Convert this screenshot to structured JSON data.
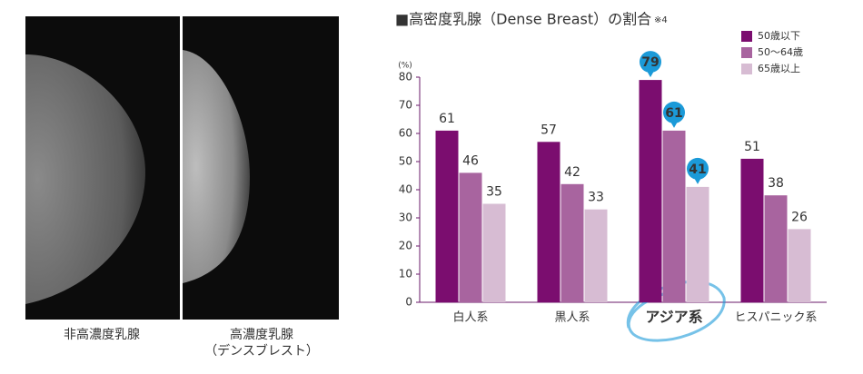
{
  "images": [
    {
      "caption": [
        "非高濃度乳腺"
      ]
    },
    {
      "caption": [
        "高濃度乳腺",
        "（デンスブレスト）"
      ]
    }
  ],
  "chart_data": {
    "type": "bar",
    "title": "■高密度乳腺（Dense Breast）の割合",
    "title_note": "※4",
    "y_label": "(%)",
    "categories": [
      "白人系",
      "黒人系",
      "アジア系",
      "ヒスパニック系"
    ],
    "series": [
      {
        "name": "50歳以下",
        "color": "#7b0d6f",
        "values": [
          61,
          57,
          79,
          51
        ]
      },
      {
        "name": "50～64歳",
        "color": "#a8649f",
        "values": [
          46,
          42,
          61,
          38
        ]
      },
      {
        "name": "65歳以上",
        "color": "#d7bcd3",
        "values": [
          35,
          33,
          41,
          26
        ]
      }
    ],
    "ylim": [
      0,
      80
    ],
    "yticks": [
      0,
      10,
      20,
      30,
      40,
      50,
      60,
      70,
      80
    ],
    "grid": false,
    "legend": "upper right",
    "highlight_category": 2,
    "highlight_color": "#1b9ad8"
  }
}
